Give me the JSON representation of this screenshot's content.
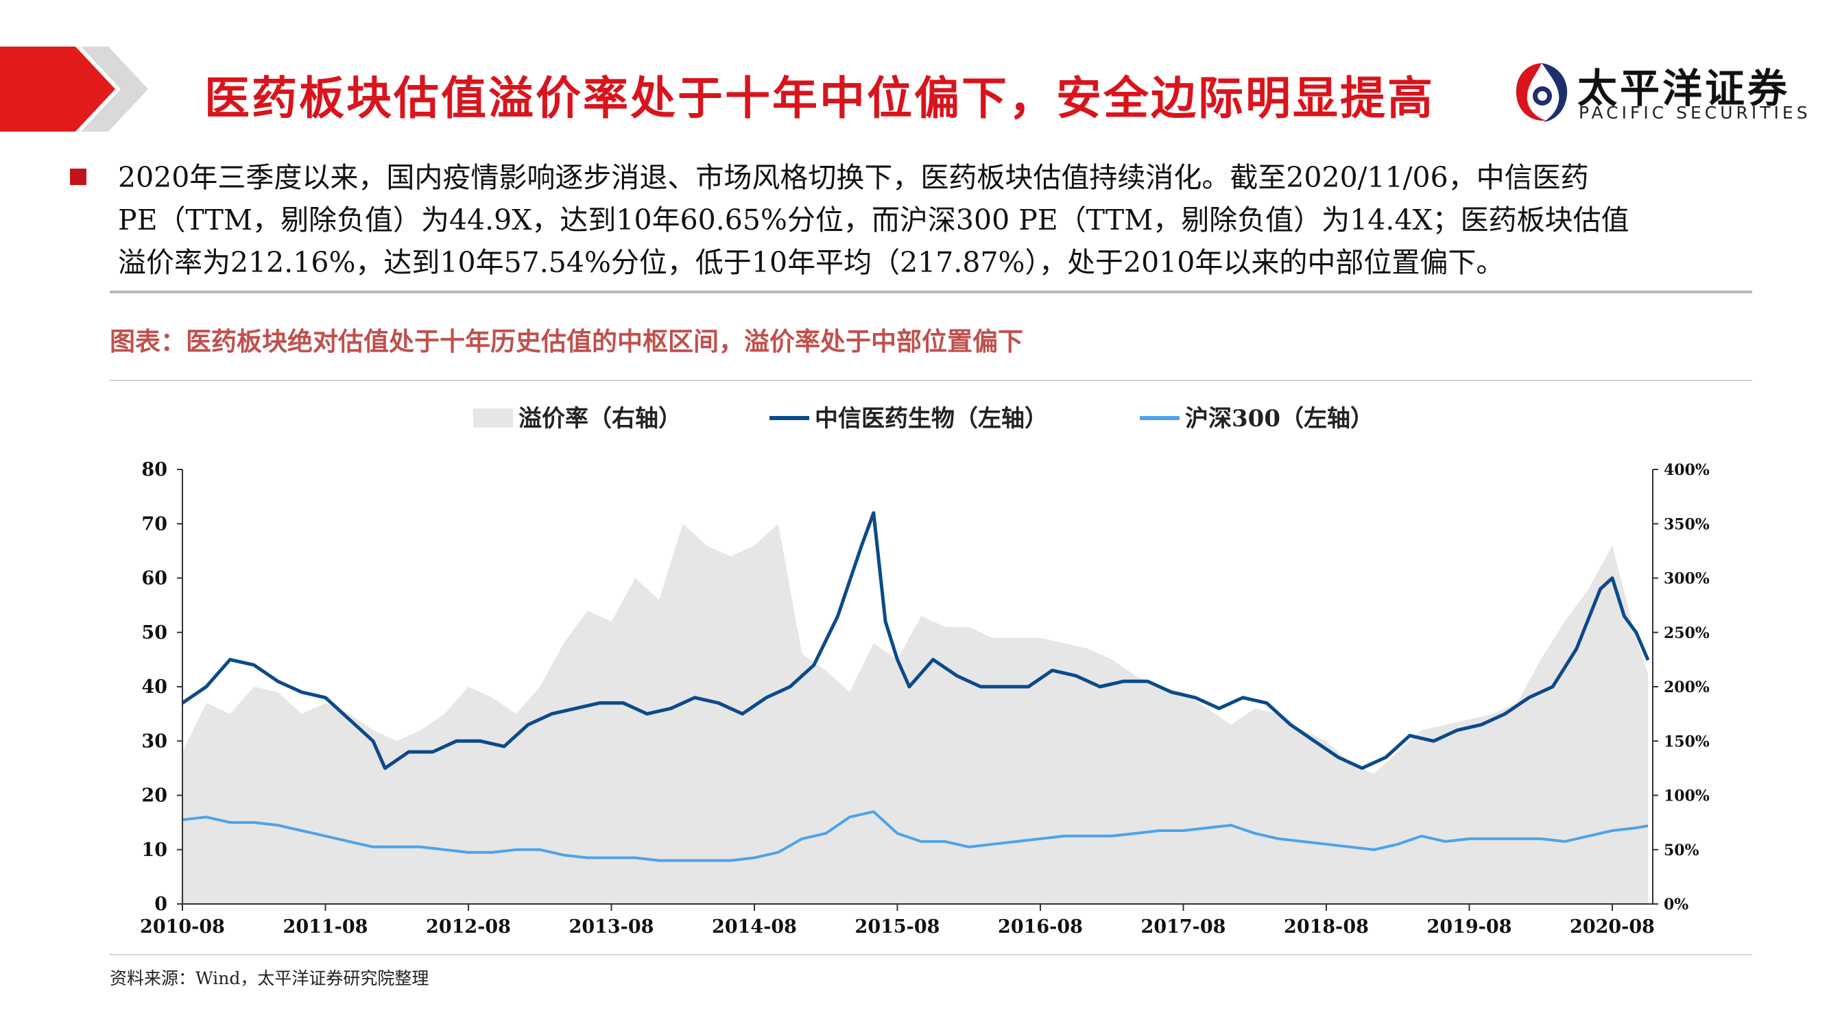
{
  "header": {
    "title": "医药板块估值溢价率处于十年中位偏下，安全边际明显提高",
    "logo_cn": "太平洋证券",
    "logo_en": "PACIFIC SECURITIES"
  },
  "summary": {
    "lines": [
      "2020年三季度以来，国内疫情影响逐步消退、市场风格切换下，医药板块估值持续消化。截至2020/11/06，中信医药",
      "PE（TTM，剔除负值）为44.9X，达到10年60.65%分位，而沪深300 PE（TTM，剔除负值）为14.4X；医药板块估值",
      "溢价率为212.16%，达到10年57.54%分位，低于10年平均（217.87%），处于2010年以来的中部位置偏下。"
    ]
  },
  "chart_caption": "图表：医药板块绝对估值处于十年历史估值的中枢区间，溢价率处于中部位置偏下",
  "source_note": "资料来源：Wind，太平洋证券研究院整理",
  "chart_data": {
    "type": "area",
    "legend_position": "top",
    "grid": false,
    "x_ticks": [
      "2010-08",
      "2011-08",
      "2012-08",
      "2013-08",
      "2014-08",
      "2015-08",
      "2016-08",
      "2017-08",
      "2018-08",
      "2019-08",
      "2020-08"
    ],
    "y_left": {
      "ylim": [
        0,
        80
      ],
      "ticks": [
        "0",
        "10",
        "20",
        "30",
        "40",
        "50",
        "60",
        "70",
        "80"
      ]
    },
    "y_right": {
      "ylim": [
        0,
        400
      ],
      "ticks": [
        "0%",
        "50%",
        "100%",
        "150%",
        "200%",
        "250%",
        "300%",
        "350%",
        "400%"
      ]
    },
    "x_range": [
      "2010-08",
      "2020-11"
    ],
    "series": [
      {
        "name": "溢价率（右轴）",
        "kind": "area",
        "axis": "right",
        "color": "#e6e6e6",
        "points": [
          [
            "2010-08",
            140
          ],
          [
            "2010-10",
            185
          ],
          [
            "2010-12",
            175
          ],
          [
            "2011-02",
            200
          ],
          [
            "2011-04",
            195
          ],
          [
            "2011-06",
            175
          ],
          [
            "2011-08",
            185
          ],
          [
            "2011-10",
            175
          ],
          [
            "2011-12",
            160
          ],
          [
            "2012-02",
            150
          ],
          [
            "2012-04",
            160
          ],
          [
            "2012-06",
            175
          ],
          [
            "2012-08",
            200
          ],
          [
            "2012-10",
            190
          ],
          [
            "2012-12",
            175
          ],
          [
            "2013-02",
            200
          ],
          [
            "2013-04",
            240
          ],
          [
            "2013-06",
            270
          ],
          [
            "2013-08",
            260
          ],
          [
            "2013-10",
            300
          ],
          [
            "2013-12",
            280
          ],
          [
            "2014-02",
            350
          ],
          [
            "2014-04",
            330
          ],
          [
            "2014-06",
            320
          ],
          [
            "2014-08",
            330
          ],
          [
            "2014-10",
            350
          ],
          [
            "2014-12",
            230
          ],
          [
            "2015-02",
            215
          ],
          [
            "2015-04",
            195
          ],
          [
            "2015-06",
            240
          ],
          [
            "2015-08",
            225
          ],
          [
            "2015-10",
            265
          ],
          [
            "2015-12",
            255
          ],
          [
            "2016-02",
            255
          ],
          [
            "2016-04",
            245
          ],
          [
            "2016-06",
            245
          ],
          [
            "2016-08",
            245
          ],
          [
            "2016-10",
            240
          ],
          [
            "2016-12",
            235
          ],
          [
            "2017-02",
            225
          ],
          [
            "2017-04",
            210
          ],
          [
            "2017-06",
            200
          ],
          [
            "2017-08",
            195
          ],
          [
            "2017-10",
            180
          ],
          [
            "2017-12",
            165
          ],
          [
            "2018-02",
            180
          ],
          [
            "2018-04",
            175
          ],
          [
            "2018-06",
            160
          ],
          [
            "2018-08",
            150
          ],
          [
            "2018-10",
            130
          ],
          [
            "2018-12",
            120
          ],
          [
            "2019-02",
            140
          ],
          [
            "2019-04",
            160
          ],
          [
            "2019-06",
            165
          ],
          [
            "2019-08",
            170
          ],
          [
            "2019-10",
            175
          ],
          [
            "2019-12",
            185
          ],
          [
            "2020-02",
            225
          ],
          [
            "2020-04",
            260
          ],
          [
            "2020-06",
            290
          ],
          [
            "2020-08",
            330
          ],
          [
            "2020-10",
            245
          ],
          [
            "2020-11",
            212
          ]
        ]
      },
      {
        "name": "中信医药生物（左轴）",
        "kind": "line",
        "axis": "left",
        "color": "#0b4a8b",
        "points": [
          [
            "2010-08",
            37
          ],
          [
            "2010-10",
            40
          ],
          [
            "2010-12",
            45
          ],
          [
            "2011-02",
            44
          ],
          [
            "2011-04",
            41
          ],
          [
            "2011-06",
            39
          ],
          [
            "2011-08",
            38
          ],
          [
            "2011-10",
            34
          ],
          [
            "2011-12",
            30
          ],
          [
            "2012-01",
            25
          ],
          [
            "2012-03",
            28
          ],
          [
            "2012-05",
            28
          ],
          [
            "2012-07",
            30
          ],
          [
            "2012-09",
            30
          ],
          [
            "2012-11",
            29
          ],
          [
            "2013-01",
            33
          ],
          [
            "2013-03",
            35
          ],
          [
            "2013-05",
            36
          ],
          [
            "2013-07",
            37
          ],
          [
            "2013-09",
            37
          ],
          [
            "2013-11",
            35
          ],
          [
            "2014-01",
            36
          ],
          [
            "2014-03",
            38
          ],
          [
            "2014-05",
            37
          ],
          [
            "2014-07",
            35
          ],
          [
            "2014-09",
            38
          ],
          [
            "2014-11",
            40
          ],
          [
            "2015-01",
            44
          ],
          [
            "2015-03",
            53
          ],
          [
            "2015-05",
            66
          ],
          [
            "2015-06",
            72
          ],
          [
            "2015-07",
            52
          ],
          [
            "2015-08",
            45
          ],
          [
            "2015-09",
            40
          ],
          [
            "2015-11",
            45
          ],
          [
            "2016-01",
            42
          ],
          [
            "2016-03",
            40
          ],
          [
            "2016-05",
            40
          ],
          [
            "2016-07",
            40
          ],
          [
            "2016-09",
            43
          ],
          [
            "2016-11",
            42
          ],
          [
            "2017-01",
            40
          ],
          [
            "2017-03",
            41
          ],
          [
            "2017-05",
            41
          ],
          [
            "2017-07",
            39
          ],
          [
            "2017-09",
            38
          ],
          [
            "2017-11",
            36
          ],
          [
            "2018-01",
            38
          ],
          [
            "2018-03",
            37
          ],
          [
            "2018-05",
            33
          ],
          [
            "2018-07",
            30
          ],
          [
            "2018-09",
            27
          ],
          [
            "2018-11",
            25
          ],
          [
            "2019-01",
            27
          ],
          [
            "2019-03",
            31
          ],
          [
            "2019-05",
            30
          ],
          [
            "2019-07",
            32
          ],
          [
            "2019-09",
            33
          ],
          [
            "2019-11",
            35
          ],
          [
            "2020-01",
            38
          ],
          [
            "2020-03",
            40
          ],
          [
            "2020-05",
            47
          ],
          [
            "2020-07",
            58
          ],
          [
            "2020-08",
            60
          ],
          [
            "2020-09",
            53
          ],
          [
            "2020-10",
            50
          ],
          [
            "2020-11",
            44.9
          ]
        ]
      },
      {
        "name": "沪深300（左轴）",
        "kind": "line",
        "axis": "left",
        "color": "#4ea3e8",
        "points": [
          [
            "2010-08",
            15.5
          ],
          [
            "2010-10",
            16
          ],
          [
            "2010-12",
            15
          ],
          [
            "2011-02",
            15
          ],
          [
            "2011-04",
            14.5
          ],
          [
            "2011-06",
            13.5
          ],
          [
            "2011-08",
            12.5
          ],
          [
            "2011-10",
            11.5
          ],
          [
            "2011-12",
            10.5
          ],
          [
            "2012-02",
            10.5
          ],
          [
            "2012-04",
            10.5
          ],
          [
            "2012-06",
            10
          ],
          [
            "2012-08",
            9.5
          ],
          [
            "2012-10",
            9.5
          ],
          [
            "2012-12",
            10
          ],
          [
            "2013-02",
            10
          ],
          [
            "2013-04",
            9
          ],
          [
            "2013-06",
            8.5
          ],
          [
            "2013-08",
            8.5
          ],
          [
            "2013-10",
            8.5
          ],
          [
            "2013-12",
            8
          ],
          [
            "2014-02",
            8
          ],
          [
            "2014-04",
            8
          ],
          [
            "2014-06",
            8
          ],
          [
            "2014-08",
            8.5
          ],
          [
            "2014-10",
            9.5
          ],
          [
            "2014-12",
            12
          ],
          [
            "2015-02",
            13
          ],
          [
            "2015-04",
            16
          ],
          [
            "2015-06",
            17
          ],
          [
            "2015-08",
            13
          ],
          [
            "2015-10",
            11.5
          ],
          [
            "2015-12",
            11.5
          ],
          [
            "2016-02",
            10.5
          ],
          [
            "2016-04",
            11
          ],
          [
            "2016-06",
            11.5
          ],
          [
            "2016-08",
            12
          ],
          [
            "2016-10",
            12.5
          ],
          [
            "2016-12",
            12.5
          ],
          [
            "2017-02",
            12.5
          ],
          [
            "2017-04",
            13
          ],
          [
            "2017-06",
            13.5
          ],
          [
            "2017-08",
            13.5
          ],
          [
            "2017-10",
            14
          ],
          [
            "2017-12",
            14.5
          ],
          [
            "2018-02",
            13
          ],
          [
            "2018-04",
            12
          ],
          [
            "2018-06",
            11.5
          ],
          [
            "2018-08",
            11
          ],
          [
            "2018-10",
            10.5
          ],
          [
            "2018-12",
            10
          ],
          [
            "2019-02",
            11
          ],
          [
            "2019-04",
            12.5
          ],
          [
            "2019-06",
            11.5
          ],
          [
            "2019-08",
            12
          ],
          [
            "2019-10",
            12
          ],
          [
            "2019-12",
            12
          ],
          [
            "2020-02",
            12
          ],
          [
            "2020-04",
            11.5
          ],
          [
            "2020-06",
            12.5
          ],
          [
            "2020-08",
            13.5
          ],
          [
            "2020-10",
            14
          ],
          [
            "2020-11",
            14.4
          ]
        ]
      }
    ]
  }
}
